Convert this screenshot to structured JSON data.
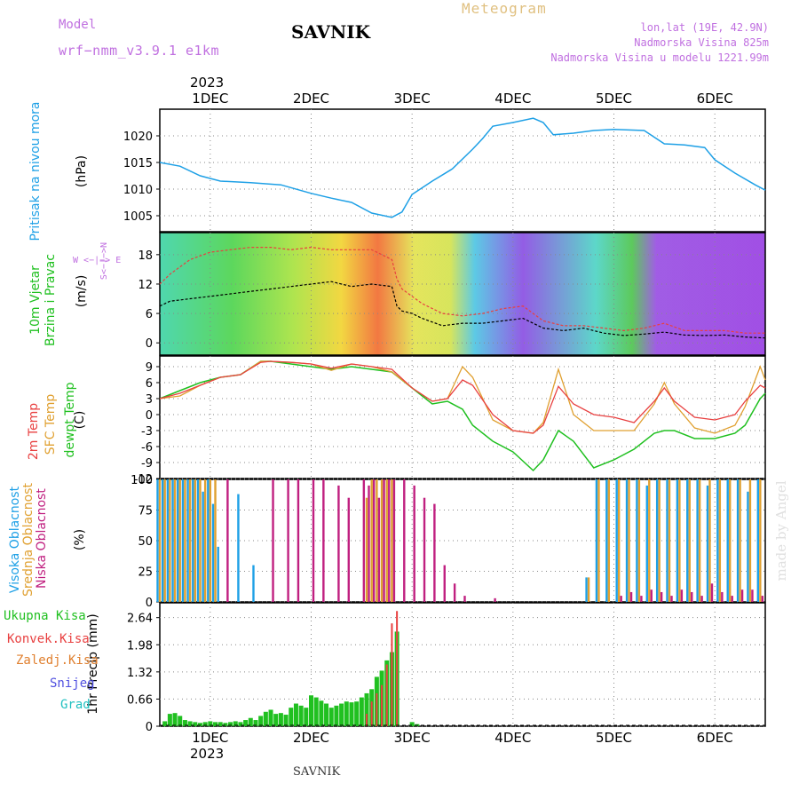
{
  "header": {
    "model_label": "Model",
    "model_name": "wrf−nmm_v3.9.1  e1km",
    "station": "SAVNIK",
    "product": "Meteogram",
    "location_line1": "lon,lat (19E, 42.9N)",
    "location_line2": "Nadmorska Visina 825m",
    "location_line3": "Nadmorska Visina u modelu 1221.99m"
  },
  "time_axis": {
    "year": "2023",
    "day_labels": [
      "1DEC",
      "2DEC",
      "3DEC",
      "4DEC",
      "5DEC",
      "6DEC"
    ]
  },
  "footer": {
    "station": "SAVNIK",
    "watermark": "made by Angel"
  },
  "wind_legend": {
    "n": "N",
    "s": "S",
    "w": "W",
    "e": "E"
  },
  "colors": {
    "pressure": "#1ea0e6",
    "temp2m": "#e84040",
    "sfc_temp": "#e0a030",
    "dewpoint": "#20c020",
    "wind_speed_line": "#000000",
    "gust_line": "#e84040",
    "cloud_high": "#1ea0e6",
    "cloud_mid": "#e0a030",
    "cloud_low": "#c02080",
    "precip_total": "#20c020",
    "precip_conv": "#e84040",
    "precip_strat": "#e08030",
    "snow": "#5050e0",
    "hail": "#20c0c0",
    "wind_label": "#c070e0"
  },
  "chart_data": [
    {
      "type": "line",
      "panel": "pressure",
      "ylabel_colored": "Pritisak na nivou mora",
      "ylabel_units": "(hPa)",
      "ylim": [
        1002,
        1025
      ],
      "yticks": [
        "1005",
        "1010",
        "1015",
        "1020"
      ],
      "x_days": [
        0.5,
        0.7,
        0.9,
        1.1,
        1.4,
        1.7,
        2.0,
        2.2,
        2.4,
        2.6,
        2.8,
        2.9,
        3.0,
        3.2,
        3.4,
        3.6,
        3.7,
        3.8,
        4.0,
        4.2,
        4.3,
        4.4,
        4.6,
        4.8,
        5.0,
        5.3,
        5.5,
        5.7,
        5.9,
        6.0,
        6.2,
        6.4,
        6.5
      ],
      "series": [
        {
          "values": [
            1015,
            1014.3,
            1012.5,
            1011.5,
            1011.2,
            1010.8,
            1009.2,
            1008.3,
            1007.5,
            1005.5,
            1004.7,
            1005.7,
            1009,
            1011.5,
            1013.8,
            1017.5,
            1019.5,
            1021.8,
            1022.5,
            1023.3,
            1022.5,
            1020.2,
            1020.5,
            1021.0,
            1021.2,
            1021.0,
            1018.5,
            1018.3,
            1017.8,
            1015.5,
            1013.0,
            1010.8,
            1009.8
          ]
        }
      ]
    },
    {
      "type": "line",
      "panel": "wind",
      "ylabel_colored_1": "10m Vjetar",
      "ylabel_colored_2": "Brzina i Pravac",
      "ylabel_units": "(m/s)",
      "ylim": [
        -2.5,
        22.5
      ],
      "yticks": [
        "0",
        "6",
        "12",
        "18"
      ],
      "x_days": [
        0.5,
        0.6,
        0.8,
        1.0,
        1.2,
        1.4,
        1.6,
        1.8,
        2.0,
        2.2,
        2.4,
        2.6,
        2.8,
        2.85,
        2.9,
        3.0,
        3.1,
        3.3,
        3.5,
        3.7,
        3.9,
        4.1,
        4.3,
        4.5,
        4.7,
        4.9,
        5.1,
        5.3,
        5.5,
        5.7,
        5.9,
        6.1,
        6.3,
        6.5
      ],
      "series": [
        {
          "values": [
            7.5,
            8.5,
            9.0,
            9.5,
            10.0,
            10.5,
            11.0,
            11.5,
            12.0,
            12.5,
            11.5,
            12.0,
            11.5,
            7.5,
            6.5,
            6.0,
            5.0,
            3.5,
            4.0,
            4.0,
            4.5,
            5.0,
            3.0,
            2.5,
            3.0,
            2.0,
            1.5,
            1.8,
            2.2,
            1.6,
            1.5,
            1.6,
            1.2,
            1.0
          ]
        },
        {
          "values": [
            12.0,
            14.0,
            17.0,
            18.5,
            19.0,
            19.5,
            19.5,
            19.0,
            19.5,
            19.0,
            19.0,
            19.0,
            17.0,
            13.0,
            11.0,
            9.5,
            8.0,
            6.0,
            5.5,
            6.0,
            7.0,
            7.5,
            4.5,
            3.5,
            3.5,
            3.0,
            2.5,
            3.0,
            4.0,
            2.5,
            2.5,
            2.5,
            2.0,
            2.0
          ]
        }
      ]
    },
    {
      "type": "line",
      "panel": "temperature",
      "ylabel_colored_1": "2m Temp",
      "ylabel_colored_2": "SFC Temp",
      "ylabel_colored_3": "dewpt Temp",
      "ylabel_units": "(C)",
      "ylim": [
        -12,
        11
      ],
      "yticks": [
        "-12",
        "-9",
        "-6",
        "-3",
        "0",
        "3",
        "6",
        "9"
      ],
      "x_days": [
        0.5,
        0.7,
        0.9,
        1.1,
        1.3,
        1.5,
        1.6,
        1.8,
        2.0,
        2.2,
        2.4,
        2.6,
        2.8,
        3.0,
        3.2,
        3.35,
        3.5,
        3.6,
        3.8,
        4.0,
        4.2,
        4.3,
        4.45,
        4.6,
        4.8,
        5.0,
        5.2,
        5.4,
        5.5,
        5.6,
        5.8,
        6.0,
        6.2,
        6.3,
        6.45,
        6.5
      ],
      "series": [
        {
          "name": "2m Temp",
          "values": [
            3,
            4,
            5.5,
            7,
            7.5,
            9.8,
            10,
            9.8,
            9.5,
            8.7,
            9.5,
            9,
            8.5,
            5,
            2.5,
            3,
            6.5,
            5.5,
            0,
            -3,
            -3.5,
            -2.0,
            5.3,
            2,
            0,
            -0.5,
            -1.5,
            2.5,
            5,
            2.5,
            -0.5,
            -1,
            0,
            2.5,
            5.5,
            5
          ]
        },
        {
          "name": "SFC Temp",
          "values": [
            3,
            3.5,
            5.5,
            7,
            7.5,
            10,
            10,
            9.8,
            9.5,
            8.3,
            9.5,
            9,
            8,
            5,
            2.5,
            3,
            9,
            7,
            -1,
            -3,
            -3.5,
            -1.5,
            8.5,
            0,
            -3,
            -3,
            -3,
            2,
            6,
            2,
            -2.5,
            -3.5,
            -2.0,
            1.5,
            9,
            6.5
          ]
        },
        {
          "name": "dewpt Temp",
          "values": [
            3,
            4.5,
            6.0,
            7,
            7.5,
            10,
            10,
            9.5,
            9,
            8.5,
            9,
            8.5,
            8,
            5,
            2,
            2.5,
            1,
            -2,
            -5,
            -7,
            -10.5,
            -8.5,
            -3.0,
            -5,
            -10,
            -8.5,
            -6.5,
            -3.5,
            -3,
            -3,
            -4.5,
            -4.5,
            -3.5,
            -2,
            3,
            4
          ]
        }
      ]
    },
    {
      "type": "bar",
      "panel": "cloud",
      "ylabel_colored_1": "Visoka Oblacnost",
      "ylabel_colored_2": "Srednja Oblacnost",
      "ylabel_colored_3": "Niska Oblacnost",
      "ylabel_units": "(%)",
      "ylim": [
        0,
        100
      ],
      "yticks": [
        "0",
        "25",
        "50",
        "75",
        "100"
      ],
      "x_days": [
        0.5,
        0.55,
        0.6,
        0.65,
        0.7,
        0.75,
        0.8,
        0.85,
        0.9,
        0.95,
        1.0,
        1.05,
        1.1,
        1.15,
        1.3,
        1.45,
        1.6,
        1.75,
        1.85,
        2.0,
        2.1,
        2.25,
        2.35,
        2.5,
        2.55,
        2.6,
        2.65,
        2.7,
        2.75,
        2.8,
        2.9,
        3.0,
        3.1,
        3.2,
        3.3,
        3.4,
        3.5,
        3.6,
        3.8,
        3.9,
        4.1,
        4.3,
        4.75,
        4.85,
        4.95,
        5.05,
        5.15,
        5.25,
        5.35,
        5.45,
        5.55,
        5.65,
        5.75,
        5.85,
        5.95,
        6.05,
        6.15,
        6.25,
        6.35,
        6.45
      ],
      "series": [
        {
          "name": "Visoka Oblacnost",
          "values": [
            100,
            100,
            100,
            100,
            100,
            100,
            100,
            100,
            100,
            90,
            100,
            80,
            45,
            0,
            88,
            30,
            0,
            0,
            0,
            0,
            0,
            0,
            0,
            0,
            0,
            0,
            0,
            0,
            0,
            0,
            0,
            0,
            0,
            0,
            0,
            0,
            0,
            0,
            0,
            0,
            0,
            0,
            20,
            100,
            100,
            100,
            100,
            100,
            95,
            100,
            100,
            100,
            100,
            100,
            95,
            100,
            100,
            100,
            90,
            100
          ]
        },
        {
          "name": "Srednja Oblacnost",
          "values": [
            100,
            100,
            100,
            100,
            100,
            100,
            100,
            100,
            100,
            100,
            100,
            100,
            0,
            0,
            0,
            0,
            0,
            0,
            0,
            0,
            0,
            0,
            0,
            0,
            85,
            100,
            100,
            100,
            100,
            100,
            0,
            0,
            0,
            0,
            0,
            0,
            0,
            0,
            0,
            0,
            0,
            0,
            20,
            100,
            100,
            100,
            100,
            100,
            100,
            100,
            100,
            100,
            100,
            100,
            100,
            100,
            100,
            100,
            100,
            100
          ]
        },
        {
          "name": "Niska Oblacnost",
          "values": [
            0,
            0,
            0,
            0,
            0,
            0,
            0,
            0,
            0,
            0,
            0,
            0,
            0,
            100,
            0,
            0,
            100,
            100,
            100,
            100,
            100,
            95,
            85,
            100,
            95,
            100,
            85,
            100,
            100,
            100,
            100,
            95,
            85,
            80,
            30,
            15,
            5,
            0,
            3,
            0,
            0,
            0,
            0,
            0,
            0,
            5,
            8,
            5,
            10,
            8,
            5,
            10,
            8,
            5,
            15,
            8,
            5,
            10,
            10,
            5
          ]
        }
      ]
    },
    {
      "type": "bar",
      "panel": "precip",
      "legend": [
        "Ukupna Kisa",
        "Konvek.Kisa",
        "Zaledj.Kisa",
        "Snijeg",
        "Grad"
      ],
      "ylabel_units": "1hr Precip (mm)",
      "ylim": [
        0,
        3.0
      ],
      "yticks": [
        "0",
        "0.66",
        "1.32",
        "1.98",
        "2.64"
      ],
      "x_days": [
        0.55,
        0.6,
        0.65,
        0.7,
        0.75,
        0.8,
        0.85,
        0.9,
        0.95,
        1.0,
        1.05,
        1.1,
        1.15,
        1.2,
        1.25,
        1.3,
        1.35,
        1.4,
        1.45,
        1.5,
        1.55,
        1.6,
        1.65,
        1.7,
        1.75,
        1.8,
        1.85,
        1.9,
        1.95,
        2.0,
        2.05,
        2.1,
        2.15,
        2.2,
        2.25,
        2.3,
        2.35,
        2.4,
        2.45,
        2.5,
        2.55,
        2.6,
        2.65,
        2.7,
        2.75,
        2.8,
        2.85,
        3.0,
        3.05
      ],
      "series": [
        {
          "name": "Ukupna Kisa",
          "values": [
            0.12,
            0.3,
            0.32,
            0.25,
            0.15,
            0.12,
            0.1,
            0.08,
            0.1,
            0.12,
            0.1,
            0.1,
            0.08,
            0.1,
            0.12,
            0.1,
            0.15,
            0.2,
            0.15,
            0.25,
            0.35,
            0.4,
            0.3,
            0.32,
            0.28,
            0.45,
            0.55,
            0.5,
            0.45,
            0.75,
            0.7,
            0.62,
            0.55,
            0.45,
            0.5,
            0.55,
            0.6,
            0.58,
            0.6,
            0.7,
            0.8,
            0.9,
            1.2,
            1.35,
            1.6,
            1.8,
            2.3,
            0.1,
            0.05
          ]
        },
        {
          "name": "Konvek.Kisa",
          "values": [
            0,
            0,
            0,
            0,
            0,
            0,
            0,
            0,
            0,
            0,
            0,
            0,
            0,
            0,
            0,
            0,
            0,
            0,
            0,
            0,
            0,
            0,
            0,
            0,
            0,
            0,
            0,
            0,
            0,
            0,
            0,
            0,
            0,
            0,
            0,
            0,
            0,
            0,
            0,
            0,
            0.3,
            0.6,
            0.8,
            1.0,
            1.5,
            2.5,
            2.8,
            0,
            0
          ]
        }
      ]
    }
  ]
}
